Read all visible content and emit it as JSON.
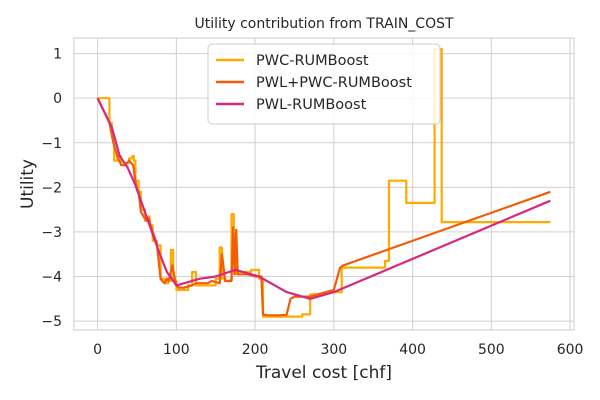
{
  "chart_data": {
    "type": "line",
    "title": "Utility contribution from TRAIN_COST",
    "xlabel": "Travel cost [chf]",
    "ylabel": "Utility",
    "xlim": [
      -30,
      605
    ],
    "ylim": [
      -5.2,
      1.35
    ],
    "xticks": [
      0,
      100,
      200,
      300,
      400,
      500,
      600
    ],
    "yticks": [
      -5,
      -4,
      -3,
      -2,
      -1,
      0,
      1
    ],
    "grid": true,
    "legend_position": "top-center",
    "series": [
      {
        "name": "PWC-RUMBoost",
        "color": "#ffaa00",
        "step": true,
        "x": [
          0,
          15,
          18,
          21,
          25,
          30,
          35,
          40,
          44,
          46,
          48,
          52,
          55,
          60,
          63,
          66,
          70,
          75,
          80,
          85,
          90,
          93,
          96,
          100,
          103,
          110,
          115,
          120,
          125,
          128,
          132,
          140,
          150,
          155,
          158,
          162,
          170,
          173,
          175,
          178,
          182,
          190,
          195,
          200,
          205,
          210,
          215,
          220,
          230,
          240,
          250,
          260,
          270,
          280,
          290,
          300,
          310,
          340,
          365,
          370,
          375,
          392,
          420,
          428,
          437,
          575
        ],
        "y": [
          0,
          -0.55,
          -0.85,
          -1.4,
          -1.3,
          -1.5,
          -1.45,
          -1.35,
          -1.3,
          -1.4,
          -1.85,
          -2.1,
          -2.5,
          -2.75,
          -2.65,
          -2.85,
          -3.2,
          -3.3,
          -4.05,
          -4.15,
          -4.1,
          -3.4,
          -4.1,
          -4.3,
          -4.3,
          -4.3,
          -4.2,
          -3.9,
          -4.2,
          -4.2,
          -4.2,
          -4.2,
          -4.05,
          -3.35,
          -4.05,
          -4.1,
          -2.6,
          -3.15,
          -3.95,
          -3.9,
          -3.9,
          -3.9,
          -3.85,
          -3.85,
          -4.05,
          -4.9,
          -4.9,
          -4.9,
          -4.9,
          -4.9,
          -4.9,
          -4.85,
          -4.4,
          -4.4,
          -4.35,
          -4.35,
          -3.8,
          -3.8,
          -3.65,
          -1.85,
          -1.85,
          -2.35,
          -2.35,
          1.1,
          -2.78,
          -2.78
        ]
      },
      {
        "name": "PWL+PWC-RUMBoost",
        "color": "#f25c05",
        "step": false,
        "x": [
          0,
          15,
          20,
          25,
          30,
          35,
          40,
          45,
          48,
          50,
          52,
          55,
          60,
          63,
          65,
          70,
          75,
          80,
          82,
          85,
          88,
          90,
          95,
          98,
          100,
          103,
          110,
          120,
          125,
          130,
          140,
          145,
          155,
          158,
          162,
          170,
          172,
          174,
          176,
          178,
          182,
          190,
          200,
          205,
          208,
          210,
          215,
          230,
          240,
          245,
          250,
          270,
          290,
          300,
          308,
          312,
          575
        ],
        "y": [
          0,
          -0.55,
          -1.0,
          -1.3,
          -1.5,
          -1.5,
          -1.4,
          -1.5,
          -1.85,
          -2.05,
          -2.1,
          -2.55,
          -2.7,
          -2.75,
          -2.7,
          -3.0,
          -3.25,
          -4.05,
          -4.1,
          -4.15,
          -4.05,
          -4.1,
          -3.75,
          -4.05,
          -4.2,
          -4.25,
          -4.25,
          -4.2,
          -4.15,
          -4.15,
          -4.15,
          -4.1,
          -4.15,
          -3.5,
          -4.1,
          -4.1,
          -2.9,
          -3.95,
          -2.95,
          -3.95,
          -3.95,
          -3.95,
          -4.0,
          -4.0,
          -4.0,
          -4.85,
          -4.87,
          -4.87,
          -4.86,
          -4.5,
          -4.45,
          -4.45,
          -4.35,
          -4.3,
          -3.8,
          -3.75,
          -2.1
        ]
      },
      {
        "name": "PWL-RUMBoost",
        "color": "#d6287f",
        "step": false,
        "x": [
          0,
          18,
          28,
          38,
          48,
          58,
          68,
          78,
          88,
          100,
          110,
          130,
          150,
          175,
          205,
          240,
          270,
          300,
          575
        ],
        "y": [
          0,
          -0.65,
          -1.3,
          -1.55,
          -1.95,
          -2.45,
          -2.95,
          -3.45,
          -3.9,
          -4.2,
          -4.15,
          -4.05,
          -4.0,
          -3.85,
          -4.0,
          -4.35,
          -4.5,
          -4.35,
          -2.3
        ]
      }
    ]
  }
}
